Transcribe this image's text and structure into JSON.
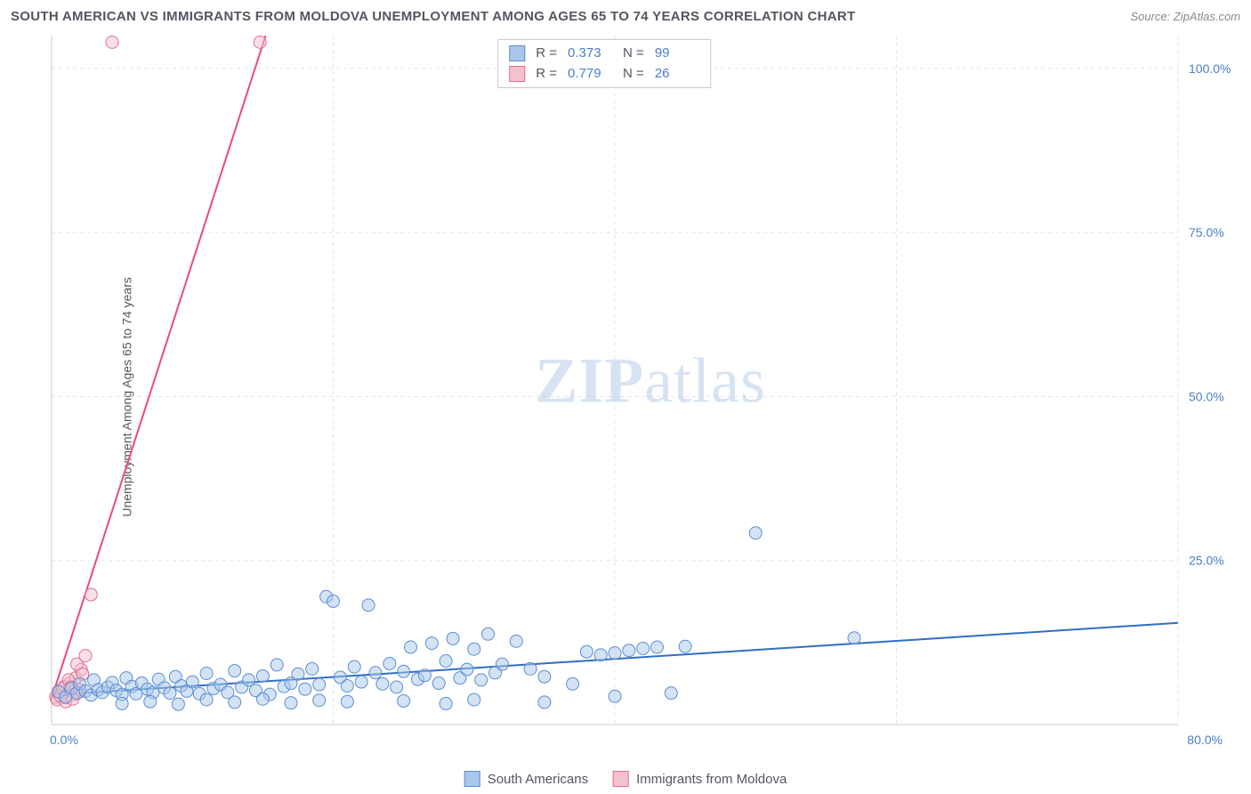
{
  "title": "SOUTH AMERICAN VS IMMIGRANTS FROM MOLDOVA UNEMPLOYMENT AMONG AGES 65 TO 74 YEARS CORRELATION CHART",
  "source": "Source: ZipAtlas.com",
  "y_axis_label": "Unemployment Among Ages 65 to 74 years",
  "watermark_bold": "ZIP",
  "watermark_rest": "atlas",
  "colors": {
    "series_a_fill": "#a9c7ea",
    "series_a_stroke": "#5b8ed3",
    "series_b_fill": "#f4c2cf",
    "series_b_stroke": "#e76b8f",
    "grid": "#e4e4e8",
    "axis": "#c8c8d0",
    "trend_a": "#2f6fc4",
    "trend_b": "#e94b7a",
    "tick_text": "#4a7ec9",
    "text": "#555560"
  },
  "chart": {
    "type": "scatter",
    "xlim": [
      0,
      80
    ],
    "ylim": [
      0,
      105
    ],
    "x_ticks": [
      0,
      20,
      40,
      60,
      80
    ],
    "y_ticks": [
      25,
      50,
      75,
      100
    ],
    "y_tick_labels": [
      "25.0%",
      "50.0%",
      "75.0%",
      "100.0%"
    ],
    "x_origin_label": "0.0%",
    "x_max_label": "80.0%",
    "marker_radius": 7,
    "marker_fill_opacity": 0.5,
    "line_width": 2
  },
  "stats": {
    "series_a": {
      "R": "0.373",
      "N": "99"
    },
    "series_b": {
      "R": "0.779",
      "N": "26"
    }
  },
  "legend": {
    "series_a": "South Americans",
    "series_b": "Immigrants from Moldova"
  },
  "trend_lines": {
    "series_a": {
      "x1": 0,
      "y1": 4.5,
      "x2": 80,
      "y2": 15.5
    },
    "series_b": {
      "x1": 0,
      "y1": 4.0,
      "x2": 15.2,
      "y2": 105
    }
  },
  "series_a_points": [
    [
      0.5,
      5
    ],
    [
      1,
      4.2
    ],
    [
      1.4,
      5.5
    ],
    [
      1.8,
      4.8
    ],
    [
      2,
      6.2
    ],
    [
      2.4,
      5.1
    ],
    [
      2.8,
      4.5
    ],
    [
      3,
      6.8
    ],
    [
      3.3,
      5.3
    ],
    [
      3.6,
      4.9
    ],
    [
      4,
      5.7
    ],
    [
      4.3,
      6.4
    ],
    [
      4.6,
      5.2
    ],
    [
      5,
      4.6
    ],
    [
      5.3,
      7.1
    ],
    [
      5.7,
      5.8
    ],
    [
      6,
      4.7
    ],
    [
      6.4,
      6.3
    ],
    [
      6.8,
      5.4
    ],
    [
      7.2,
      4.9
    ],
    [
      7.6,
      6.9
    ],
    [
      8,
      5.6
    ],
    [
      8.4,
      4.8
    ],
    [
      8.8,
      7.3
    ],
    [
      9.2,
      5.9
    ],
    [
      9.6,
      5.1
    ],
    [
      10,
      6.5
    ],
    [
      10.5,
      4.7
    ],
    [
      11,
      7.8
    ],
    [
      11.5,
      5.5
    ],
    [
      12,
      6.1
    ],
    [
      12.5,
      4.9
    ],
    [
      13,
      8.2
    ],
    [
      13.5,
      5.7
    ],
    [
      14,
      6.8
    ],
    [
      14.5,
      5.2
    ],
    [
      15,
      7.4
    ],
    [
      15.5,
      4.6
    ],
    [
      16,
      9.1
    ],
    [
      16.5,
      5.8
    ],
    [
      17,
      6.3
    ],
    [
      17.5,
      7.7
    ],
    [
      18,
      5.4
    ],
    [
      18.5,
      8.5
    ],
    [
      19,
      6.1
    ],
    [
      19.5,
      19.5
    ],
    [
      20,
      18.8
    ],
    [
      20.5,
      7.2
    ],
    [
      21,
      5.9
    ],
    [
      21.5,
      8.8
    ],
    [
      22,
      6.5
    ],
    [
      22.5,
      18.2
    ],
    [
      23,
      7.9
    ],
    [
      23.5,
      6.2
    ],
    [
      24,
      9.3
    ],
    [
      24.5,
      5.7
    ],
    [
      25,
      8.1
    ],
    [
      25.5,
      11.8
    ],
    [
      26,
      6.9
    ],
    [
      26.5,
      7.5
    ],
    [
      27,
      12.4
    ],
    [
      27.5,
      6.3
    ],
    [
      28,
      9.7
    ],
    [
      28.5,
      13.1
    ],
    [
      29,
      7.1
    ],
    [
      29.5,
      8.4
    ],
    [
      30,
      11.5
    ],
    [
      30.5,
      6.8
    ],
    [
      31,
      13.8
    ],
    [
      31.5,
      7.9
    ],
    [
      32,
      9.2
    ],
    [
      33,
      12.7
    ],
    [
      34,
      8.5
    ],
    [
      35,
      7.3
    ],
    [
      37,
      6.2
    ],
    [
      38,
      11.1
    ],
    [
      39,
      10.6
    ],
    [
      40,
      10.9
    ],
    [
      40,
      4.3
    ],
    [
      41,
      11.3
    ],
    [
      42,
      11.6
    ],
    [
      43,
      11.8
    ],
    [
      44,
      4.8
    ],
    [
      45,
      11.9
    ],
    [
      50,
      29.2
    ],
    [
      57,
      13.2
    ],
    [
      5,
      3.2
    ],
    [
      7,
      3.5
    ],
    [
      9,
      3.1
    ],
    [
      11,
      3.8
    ],
    [
      13,
      3.4
    ],
    [
      15,
      3.9
    ],
    [
      17,
      3.3
    ],
    [
      19,
      3.7
    ],
    [
      21,
      3.5
    ],
    [
      25,
      3.6
    ],
    [
      28,
      3.2
    ],
    [
      30,
      3.8
    ],
    [
      35,
      3.4
    ]
  ],
  "series_b_points": [
    [
      0.3,
      4.2
    ],
    [
      0.5,
      5.1
    ],
    [
      0.7,
      4.7
    ],
    [
      0.9,
      5.8
    ],
    [
      1.1,
      4.5
    ],
    [
      1.3,
      6.3
    ],
    [
      1.5,
      5.2
    ],
    [
      1.7,
      7.1
    ],
    [
      1.9,
      4.9
    ],
    [
      2.1,
      8.4
    ],
    [
      0.4,
      3.8
    ],
    [
      0.6,
      4.4
    ],
    [
      0.8,
      5.5
    ],
    [
      1.0,
      4.1
    ],
    [
      1.2,
      6.8
    ],
    [
      1.4,
      5.7
    ],
    [
      1.6,
      4.6
    ],
    [
      1.8,
      9.2
    ],
    [
      2.0,
      5.3
    ],
    [
      2.2,
      7.7
    ],
    [
      2.4,
      10.5
    ],
    [
      2.8,
      19.8
    ],
    [
      4.3,
      104
    ],
    [
      14.8,
      104
    ],
    [
      1.0,
      3.5
    ],
    [
      1.5,
      3.9
    ]
  ]
}
